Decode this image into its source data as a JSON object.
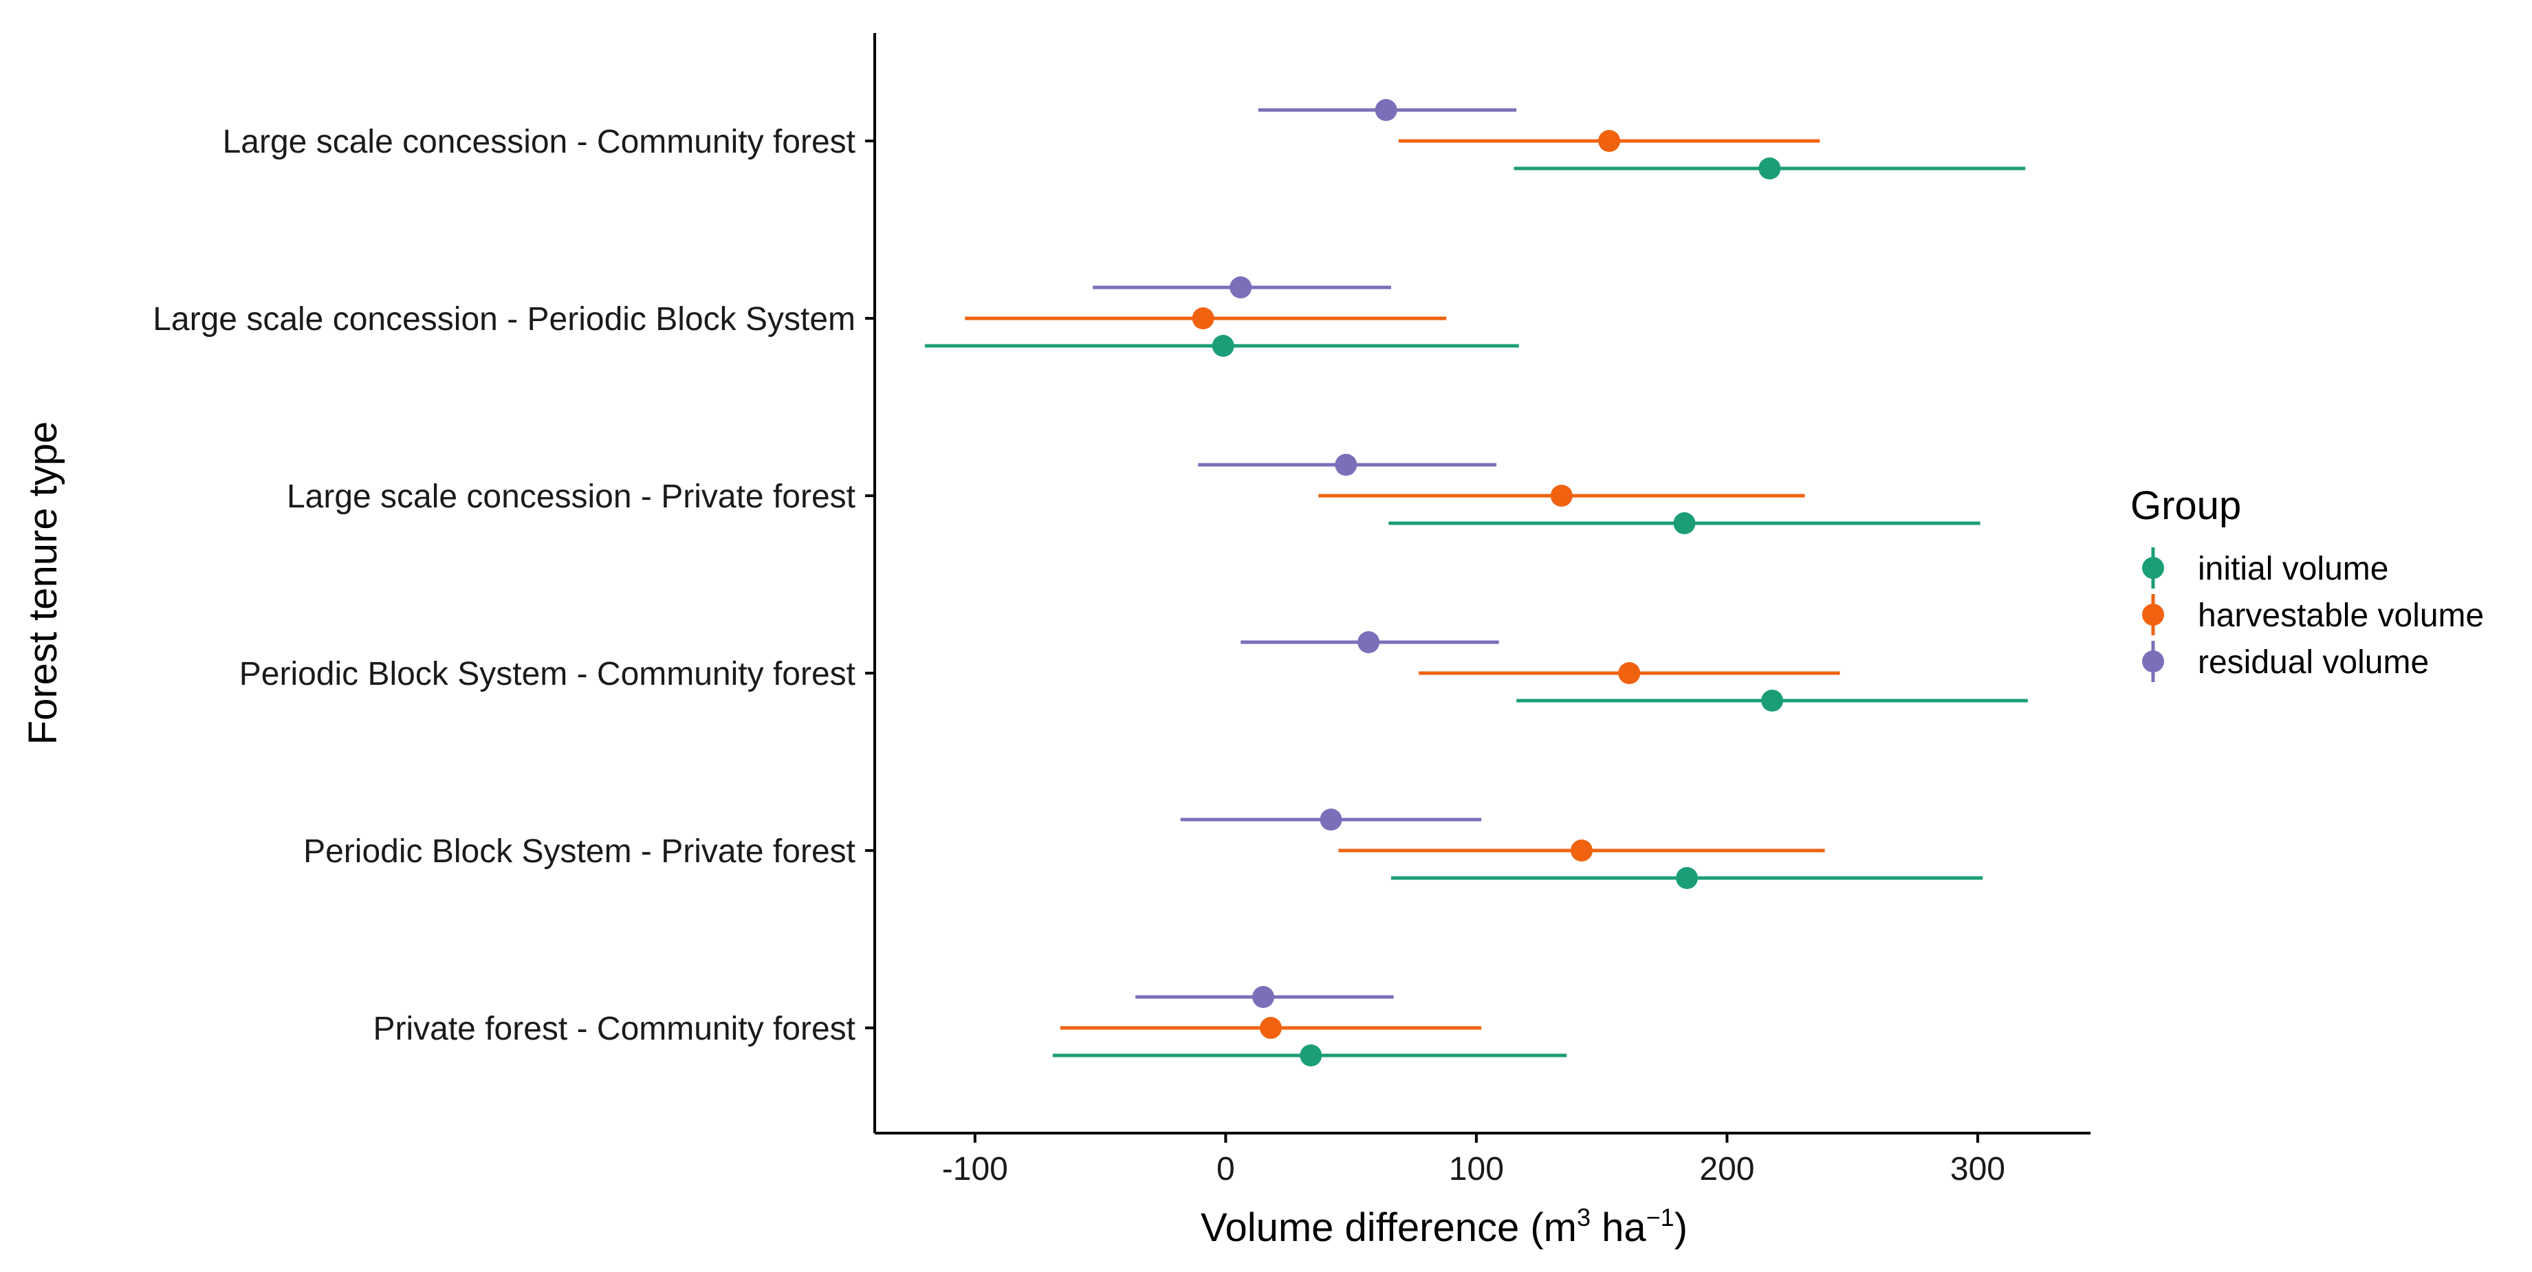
{
  "chart_data": {
    "type": "pointrange",
    "title": "",
    "xlabel": {
      "text": "Volume difference (m",
      "sup1": "3",
      "mid": " ha",
      "sup2": "−1",
      "end": ")"
    },
    "ylabel": "Forest tenure type",
    "xlim": [
      -140,
      345
    ],
    "xticks": [
      -100,
      0,
      100,
      200,
      300
    ],
    "xtick_labels": [
      "-100",
      "0",
      "100",
      "200",
      "300"
    ],
    "categories": [
      "Large scale concession - Community forest",
      "Large scale concession - Periodic Block System",
      "Large scale concession - Private forest",
      "Periodic Block System - Community forest",
      "Periodic Block System - Private forest",
      "Private forest - Community forest"
    ],
    "legend": {
      "title": "Group",
      "position": "right"
    },
    "series": [
      {
        "name": "initial volume",
        "color": "#1B9E77",
        "estimates": [
          217,
          -1,
          183,
          218,
          184,
          34
        ],
        "lower": [
          115,
          -120,
          65,
          116,
          66,
          -69
        ],
        "upper": [
          319,
          117,
          301,
          320,
          302,
          136
        ]
      },
      {
        "name": "harvestable volume",
        "color": "#F0620F",
        "estimates": [
          153,
          -9,
          134,
          161,
          142,
          18
        ],
        "lower": [
          69,
          -104,
          37,
          77,
          45,
          -66
        ],
        "upper": [
          237,
          88,
          231,
          245,
          239,
          102
        ]
      },
      {
        "name": "residual volume",
        "color": "#7B6FBA",
        "estimates": [
          64,
          6,
          48,
          57,
          42,
          15
        ],
        "lower": [
          13,
          -53,
          -11,
          6,
          -18,
          -36
        ],
        "upper": [
          116,
          66,
          108,
          109,
          102,
          67
        ]
      }
    ]
  }
}
